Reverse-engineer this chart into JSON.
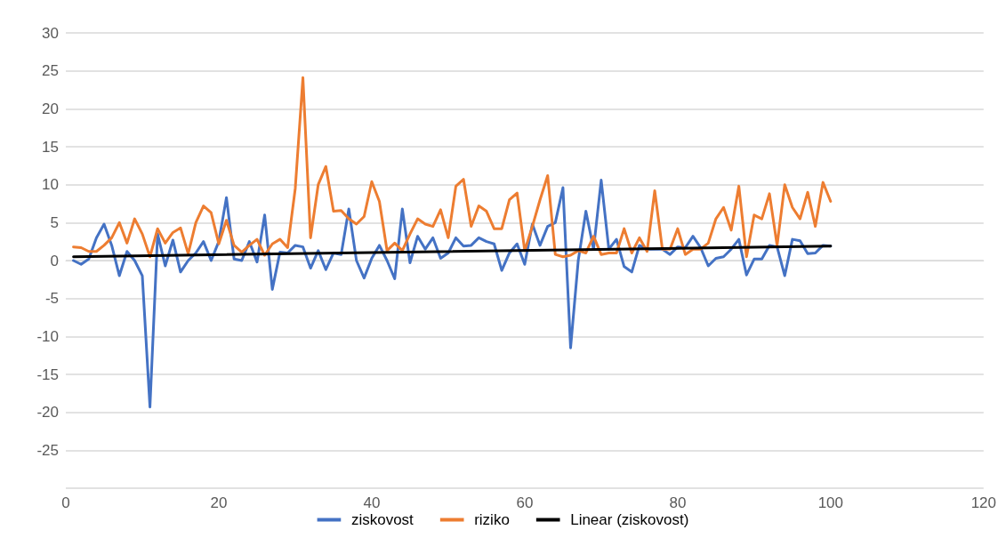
{
  "chart_data": {
    "type": "line",
    "x": [
      1,
      2,
      3,
      4,
      5,
      6,
      7,
      8,
      9,
      10,
      11,
      12,
      13,
      14,
      15,
      16,
      17,
      18,
      19,
      20,
      21,
      22,
      23,
      24,
      25,
      26,
      27,
      28,
      29,
      30,
      31,
      32,
      33,
      34,
      35,
      36,
      37,
      38,
      39,
      40,
      41,
      42,
      43,
      44,
      45,
      46,
      47,
      48,
      49,
      50,
      51,
      52,
      53,
      54,
      55,
      56,
      57,
      58,
      59,
      60,
      61,
      62,
      63,
      64,
      65,
      66,
      67,
      68,
      69,
      70,
      71,
      72,
      73,
      74,
      75,
      76,
      77,
      78,
      79,
      80,
      81,
      82,
      83,
      84,
      85,
      86,
      87,
      88,
      89,
      90,
      91,
      92,
      93,
      94,
      95,
      96,
      97,
      98,
      99,
      100
    ],
    "series": [
      {
        "name": "ziskovost",
        "color": "#4472c4",
        "values": [
          0,
          -0.5,
          0.2,
          3,
          4.8,
          2,
          -2,
          1.2,
          0,
          -2,
          -19.3,
          3.5,
          -0.7,
          2.7,
          -1.5,
          0,
          1,
          2.5,
          0,
          2.5,
          8.3,
          0.2,
          0,
          2.5,
          -0.2,
          6,
          -3.8,
          1.1,
          1,
          2,
          1.8,
          -1,
          1.3,
          -1.2,
          1,
          0.8,
          6.8,
          0,
          -2.3,
          0.3,
          2,
          0,
          -2.4,
          6.8,
          -0.3,
          3.2,
          1.5,
          3,
          0.3,
          1,
          3,
          1.9,
          2,
          3,
          2.5,
          2.2,
          -1.3,
          1,
          2.2,
          -0.5,
          4.8,
          2,
          4.5,
          5,
          9.6,
          -11.5,
          0,
          6.5,
          1.5,
          10.6,
          1.5,
          2.8,
          -0.8,
          -1.5,
          2,
          1.5,
          1.5,
          1.5,
          0.8,
          1.8,
          1.7,
          3.2,
          1.7,
          -0.7,
          0.3,
          0.5,
          1.5,
          2.8,
          -1.9,
          0.2,
          0.2,
          2,
          1.8,
          -2,
          2.8,
          2.6,
          0.9,
          1,
          2,
          1.9
        ]
      },
      {
        "name": "riziko",
        "color": "#ed7d31",
        "values": [
          1.8,
          1.7,
          1.2,
          1.2,
          2,
          3,
          5,
          2.3,
          5.5,
          3.5,
          0.5,
          4.2,
          2.3,
          3.7,
          4.3,
          0.9,
          5,
          7.2,
          6.3,
          2.2,
          5.3,
          2,
          1.1,
          2,
          2.8,
          0.7,
          2.2,
          2.8,
          1.7,
          9.5,
          24.1,
          3,
          10,
          12.4,
          6.5,
          6.6,
          5.5,
          4.8,
          5.8,
          10.4,
          7.8,
          1.3,
          2.3,
          1.3,
          3.5,
          5.5,
          4.8,
          4.5,
          6.7,
          3,
          9.8,
          10.7,
          4.5,
          7.2,
          6.5,
          4.2,
          4.2,
          8,
          8.9,
          1.3,
          4.5,
          8,
          11.2,
          0.8,
          0.5,
          0.7,
          1.3,
          1,
          3.2,
          0.8,
          1,
          1,
          4.2,
          1,
          3,
          1.2,
          9.2,
          1.5,
          1.5,
          4.2,
          0.8,
          1.5,
          1.5,
          2.3,
          5.5,
          7,
          4,
          9.8,
          0.5,
          6,
          5.5,
          8.8,
          2,
          10,
          7,
          5.5,
          9,
          4.5,
          10.3,
          7.8
        ]
      },
      {
        "name": "Linear (ziskovost)",
        "color": "#000000",
        "x": [
          1,
          100
        ],
        "values": [
          0.5,
          1.9
        ]
      }
    ],
    "xlim": [
      0,
      120
    ],
    "xticks": [
      0,
      20,
      40,
      60,
      80,
      100,
      120
    ],
    "ylim": [
      -30,
      30
    ],
    "yticks": [
      {
        "value": -30,
        "label": null
      },
      -25,
      -20,
      -15,
      -10,
      -5,
      0,
      5,
      10,
      15,
      20,
      25,
      30
    ],
    "grid": "y",
    "legend": "bottom",
    "marker": "none",
    "line_style": "solid"
  }
}
